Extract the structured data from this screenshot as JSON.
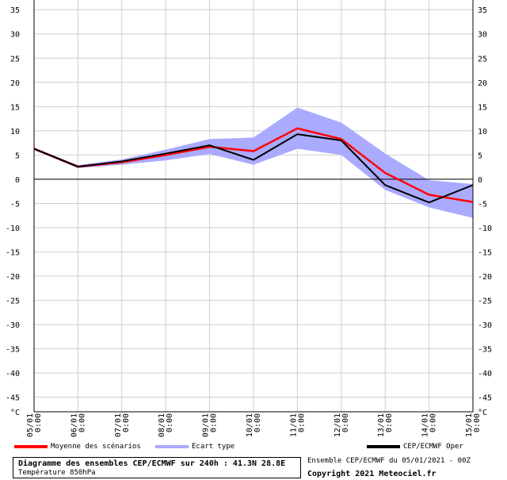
{
  "chart_data": {
    "type": "line",
    "unit": "°C",
    "x_labels": [
      "05/01 0:00",
      "06/01 0:00",
      "07/01 0:00",
      "08/01 0:00",
      "09/01 0:00",
      "10/01 0:00",
      "11/01 0:00",
      "12/01 0:00",
      "13/01 0:00",
      "14/01 0:00",
      "15/01 0:00"
    ],
    "yticks": [
      35,
      30,
      25,
      20,
      15,
      10,
      5,
      0,
      -5,
      -10,
      -15,
      -20,
      -25,
      -30,
      -35,
      -40,
      -45
    ],
    "ylim": [
      -48,
      37
    ],
    "series": [
      {
        "name": "Moyenne des scénarios",
        "color": "#ff0000",
        "values": [
          6.3,
          2.6,
          3.5,
          5.0,
          6.7,
          5.8,
          10.5,
          8.3,
          1.3,
          -3.2,
          -4.7
        ]
      },
      {
        "name": "CEP/ECMWF Oper",
        "color": "#000000",
        "values": [
          6.3,
          2.6,
          3.7,
          5.3,
          7.0,
          4.0,
          9.3,
          8.0,
          -1.2,
          -4.8,
          -1.2
        ]
      }
    ],
    "band": {
      "name": "Ecart type",
      "color": "#aaaaff",
      "upper": [
        6.5,
        2.9,
        4.1,
        6.1,
        8.3,
        8.6,
        14.8,
        11.7,
        5.3,
        -0.2,
        -1.0
      ],
      "lower": [
        6.0,
        2.3,
        3.0,
        3.9,
        5.2,
        3.0,
        6.3,
        5.0,
        -2.2,
        -5.8,
        -8.0
      ]
    },
    "grid": true
  },
  "legend": {
    "mean": "Moyenne des scénarios",
    "stddev": "Ecart type",
    "oper": "CEP/ECMWF Oper"
  },
  "footer": {
    "title": "Diagramme des ensembles CEP/ECMWF sur 240h : 41.3N 28.8E",
    "subtitle": "Température 850hPa",
    "run": "Ensemble CEP/ECMWF du 05/01/2021 - 00Z",
    "copyright": "Copyright 2021 Meteociel.fr"
  }
}
